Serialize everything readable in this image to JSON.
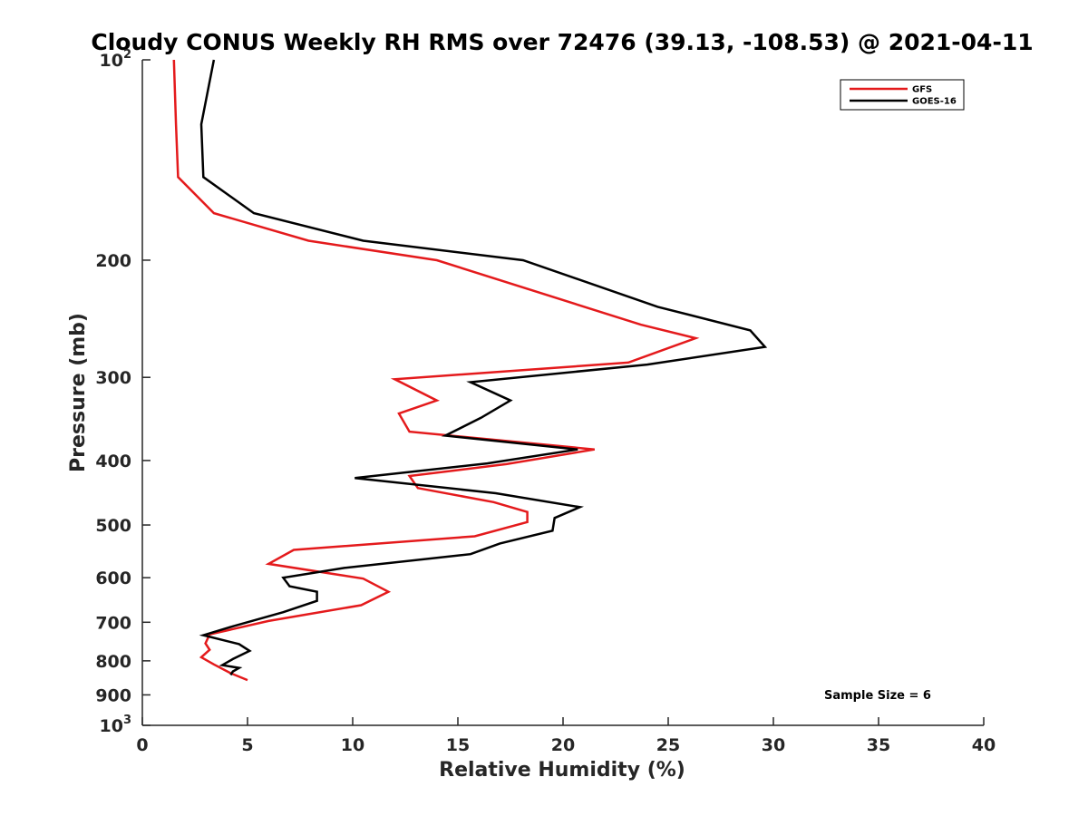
{
  "chart_data": {
    "type": "line",
    "title": "Cloudy CONUS Weekly RH RMS over 72476 (39.13, -108.53) @ 2021-04-11",
    "xlabel": "Relative Humidity (%)",
    "ylabel": "Pressure (mb)",
    "xlim": [
      0,
      40
    ],
    "ylim": [
      100,
      1000
    ],
    "y_scale": "log",
    "y_reversed": true,
    "x_ticks": [
      0,
      5,
      10,
      15,
      20,
      25,
      30,
      35,
      40
    ],
    "y_ticks": [
      {
        "value": 100,
        "label": "10",
        "exp": "2"
      },
      {
        "value": 200,
        "label": "200"
      },
      {
        "value": 300,
        "label": "300"
      },
      {
        "value": 400,
        "label": "400"
      },
      {
        "value": 500,
        "label": "500"
      },
      {
        "value": 600,
        "label": "600"
      },
      {
        "value": 700,
        "label": "700"
      },
      {
        "value": 800,
        "label": "800"
      },
      {
        "value": 900,
        "label": "900"
      },
      {
        "value": 1000,
        "label": "10",
        "exp": "3"
      }
    ],
    "grid": false,
    "legend_position": "top-right",
    "series": [
      {
        "name": "GFS",
        "color": "#e41a1c",
        "points": [
          [
            1.5,
            100
          ],
          [
            1.6,
            125
          ],
          [
            1.7,
            150
          ],
          [
            3.4,
            170
          ],
          [
            7.9,
            187
          ],
          [
            14.0,
            200
          ],
          [
            23.7,
            250
          ],
          [
            26.3,
            262
          ],
          [
            23.1,
            285
          ],
          [
            12.0,
            302
          ],
          [
            14.0,
            325
          ],
          [
            12.2,
            340
          ],
          [
            12.7,
            362
          ],
          [
            21.5,
            385
          ],
          [
            17.3,
            405
          ],
          [
            12.7,
            422
          ],
          [
            13.1,
            440
          ],
          [
            16.7,
            462
          ],
          [
            18.3,
            478
          ],
          [
            18.3,
            495
          ],
          [
            15.8,
            520
          ],
          [
            7.2,
            545
          ],
          [
            6.0,
            572
          ],
          [
            10.5,
            602
          ],
          [
            11.7,
            630
          ],
          [
            10.4,
            660
          ],
          [
            6.0,
            697
          ],
          [
            3.2,
            730
          ],
          [
            3.0,
            753
          ],
          [
            3.2,
            770
          ],
          [
            2.8,
            790
          ],
          [
            3.4,
            810
          ],
          [
            4.2,
            835
          ],
          [
            5.0,
            855
          ]
        ]
      },
      {
        "name": "GOES-16",
        "color": "#000000",
        "points": [
          [
            3.4,
            100
          ],
          [
            2.8,
            125
          ],
          [
            2.9,
            150
          ],
          [
            5.3,
            170
          ],
          [
            10.5,
            187
          ],
          [
            18.1,
            200
          ],
          [
            24.5,
            235
          ],
          [
            28.9,
            255
          ],
          [
            29.6,
            270
          ],
          [
            24.0,
            287
          ],
          [
            15.6,
            305
          ],
          [
            17.5,
            325
          ],
          [
            16.1,
            345
          ],
          [
            14.4,
            367
          ],
          [
            20.7,
            385
          ],
          [
            16.4,
            404
          ],
          [
            10.1,
            425
          ],
          [
            16.8,
            448
          ],
          [
            20.8,
            470
          ],
          [
            19.6,
            488
          ],
          [
            19.5,
            510
          ],
          [
            17.0,
            533
          ],
          [
            15.6,
            553
          ],
          [
            9.6,
            580
          ],
          [
            6.7,
            600
          ],
          [
            7.0,
            618
          ],
          [
            8.3,
            630
          ],
          [
            8.3,
            650
          ],
          [
            6.7,
            676
          ],
          [
            4.3,
            710
          ],
          [
            2.9,
            732
          ],
          [
            4.6,
            755
          ],
          [
            5.1,
            773
          ],
          [
            4.3,
            795
          ],
          [
            3.8,
            812
          ],
          [
            4.6,
            820
          ],
          [
            4.3,
            830
          ],
          [
            4.2,
            840
          ]
        ]
      }
    ],
    "annotation": "Sample Size = 6"
  }
}
